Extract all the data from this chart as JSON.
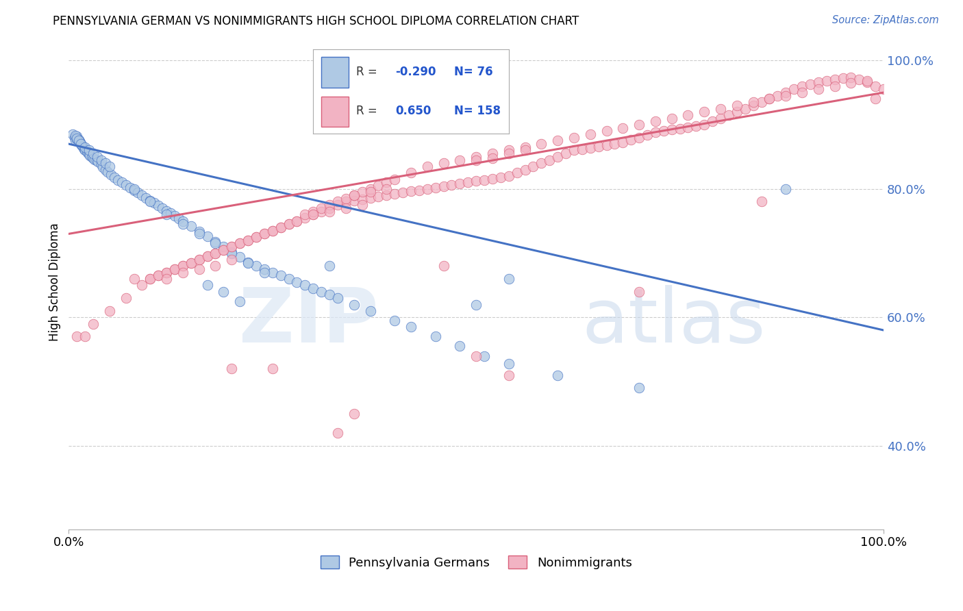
{
  "title": "PENNSYLVANIA GERMAN VS NONIMMIGRANTS HIGH SCHOOL DIPLOMA CORRELATION CHART",
  "source": "Source: ZipAtlas.com",
  "ylabel": "High School Diploma",
  "legend_label1": "Pennsylvania Germans",
  "legend_label2": "Nonimmigrants",
  "r1": "-0.290",
  "n1": "76",
  "r2": "0.650",
  "n2": "158",
  "color_blue": "#AFC9E4",
  "color_pink": "#F2B3C3",
  "line_blue": "#4472C4",
  "line_pink": "#D9607A",
  "watermark_zip": "ZIP",
  "watermark_atlas": "atlas",
  "xlim": [
    0.0,
    1.0
  ],
  "ylim": [
    0.27,
    1.04
  ],
  "blue_scatter_x": [
    0.005,
    0.007,
    0.008,
    0.01,
    0.01,
    0.012,
    0.013,
    0.014,
    0.015,
    0.016,
    0.017,
    0.018,
    0.019,
    0.02,
    0.022,
    0.023,
    0.025,
    0.026,
    0.028,
    0.03,
    0.032,
    0.034,
    0.036,
    0.04,
    0.042,
    0.045,
    0.048,
    0.052,
    0.056,
    0.06,
    0.065,
    0.07,
    0.075,
    0.08,
    0.085,
    0.09,
    0.095,
    0.1,
    0.105,
    0.11,
    0.115,
    0.12,
    0.125,
    0.13,
    0.135,
    0.14,
    0.15,
    0.16,
    0.17,
    0.18,
    0.19,
    0.2,
    0.21,
    0.22,
    0.23,
    0.24,
    0.25,
    0.26,
    0.27,
    0.28,
    0.29,
    0.3,
    0.31,
    0.32,
    0.33,
    0.35,
    0.37,
    0.4,
    0.42,
    0.45,
    0.48,
    0.51,
    0.54,
    0.6,
    0.7,
    0.88
  ],
  "blue_scatter_y": [
    0.885,
    0.88,
    0.875,
    0.882,
    0.878,
    0.876,
    0.874,
    0.872,
    0.87,
    0.868,
    0.866,
    0.864,
    0.862,
    0.86,
    0.858,
    0.856,
    0.854,
    0.852,
    0.85,
    0.848,
    0.846,
    0.844,
    0.842,
    0.838,
    0.834,
    0.83,
    0.826,
    0.822,
    0.818,
    0.814,
    0.81,
    0.806,
    0.802,
    0.798,
    0.794,
    0.79,
    0.786,
    0.782,
    0.778,
    0.774,
    0.77,
    0.766,
    0.762,
    0.758,
    0.754,
    0.75,
    0.742,
    0.734,
    0.726,
    0.718,
    0.71,
    0.702,
    0.694,
    0.686,
    0.68,
    0.675,
    0.67,
    0.665,
    0.66,
    0.655,
    0.65,
    0.645,
    0.64,
    0.635,
    0.63,
    0.62,
    0.61,
    0.595,
    0.585,
    0.57,
    0.555,
    0.54,
    0.528,
    0.51,
    0.49,
    0.8
  ],
  "blue_scatter_extra_x": [
    0.008,
    0.01,
    0.012,
    0.015,
    0.02,
    0.025,
    0.03,
    0.035,
    0.04,
    0.045,
    0.05,
    0.08,
    0.1,
    0.12,
    0.14,
    0.16,
    0.18,
    0.2,
    0.22,
    0.24,
    0.17,
    0.19,
    0.21,
    0.32,
    0.5,
    0.54
  ],
  "blue_scatter_extra_y": [
    0.883,
    0.879,
    0.875,
    0.87,
    0.865,
    0.86,
    0.855,
    0.85,
    0.845,
    0.84,
    0.835,
    0.8,
    0.78,
    0.76,
    0.745,
    0.73,
    0.715,
    0.7,
    0.685,
    0.67,
    0.65,
    0.64,
    0.625,
    0.68,
    0.62,
    0.66
  ],
  "pink_scatter_x": [
    0.01,
    0.03,
    0.05,
    0.07,
    0.09,
    0.1,
    0.11,
    0.12,
    0.13,
    0.14,
    0.15,
    0.16,
    0.17,
    0.18,
    0.19,
    0.2,
    0.21,
    0.22,
    0.23,
    0.24,
    0.25,
    0.26,
    0.27,
    0.28,
    0.29,
    0.3,
    0.31,
    0.32,
    0.33,
    0.34,
    0.35,
    0.36,
    0.37,
    0.38,
    0.39,
    0.4,
    0.41,
    0.42,
    0.43,
    0.44,
    0.45,
    0.46,
    0.47,
    0.48,
    0.49,
    0.5,
    0.51,
    0.52,
    0.53,
    0.54,
    0.55,
    0.56,
    0.57,
    0.58,
    0.59,
    0.6,
    0.61,
    0.62,
    0.63,
    0.64,
    0.65,
    0.66,
    0.67,
    0.68,
    0.69,
    0.7,
    0.71,
    0.72,
    0.73,
    0.74,
    0.75,
    0.76,
    0.77,
    0.78,
    0.79,
    0.8,
    0.81,
    0.82,
    0.83,
    0.84,
    0.85,
    0.86,
    0.87,
    0.88,
    0.89,
    0.9,
    0.91,
    0.92,
    0.93,
    0.94,
    0.95,
    0.96,
    0.97,
    0.98,
    0.99,
    1.0
  ],
  "pink_scatter_y": [
    0.57,
    0.59,
    0.61,
    0.63,
    0.65,
    0.66,
    0.665,
    0.67,
    0.675,
    0.68,
    0.685,
    0.69,
    0.695,
    0.7,
    0.705,
    0.71,
    0.715,
    0.72,
    0.725,
    0.73,
    0.735,
    0.74,
    0.745,
    0.75,
    0.755,
    0.76,
    0.765,
    0.77,
    0.775,
    0.78,
    0.782,
    0.784,
    0.786,
    0.788,
    0.79,
    0.792,
    0.794,
    0.796,
    0.798,
    0.8,
    0.802,
    0.804,
    0.806,
    0.808,
    0.81,
    0.812,
    0.814,
    0.816,
    0.818,
    0.82,
    0.825,
    0.83,
    0.835,
    0.84,
    0.845,
    0.85,
    0.855,
    0.86,
    0.862,
    0.864,
    0.866,
    0.868,
    0.87,
    0.872,
    0.876,
    0.88,
    0.884,
    0.888,
    0.89,
    0.892,
    0.894,
    0.896,
    0.898,
    0.9,
    0.905,
    0.91,
    0.915,
    0.92,
    0.925,
    0.93,
    0.935,
    0.94,
    0.945,
    0.95,
    0.955,
    0.96,
    0.963,
    0.966,
    0.968,
    0.97,
    0.972,
    0.974,
    0.97,
    0.966,
    0.96,
    0.955
  ],
  "pink_scatter_extra_x": [
    0.1,
    0.11,
    0.12,
    0.13,
    0.14,
    0.15,
    0.16,
    0.17,
    0.18,
    0.19,
    0.2,
    0.21,
    0.22,
    0.23,
    0.24,
    0.25,
    0.26,
    0.27,
    0.28,
    0.29,
    0.3,
    0.31,
    0.32,
    0.33,
    0.34,
    0.35,
    0.36,
    0.37,
    0.38,
    0.39,
    0.4,
    0.42,
    0.44,
    0.46,
    0.48,
    0.5,
    0.52,
    0.54,
    0.56,
    0.58,
    0.6,
    0.62,
    0.64,
    0.66,
    0.68,
    0.7,
    0.72,
    0.74,
    0.76,
    0.78,
    0.8,
    0.82,
    0.84,
    0.86,
    0.88,
    0.9,
    0.92,
    0.94,
    0.96,
    0.98,
    0.12,
    0.14,
    0.16,
    0.18,
    0.2,
    0.35,
    0.37,
    0.39,
    0.54,
    0.56,
    0.3,
    0.32,
    0.34,
    0.36,
    0.5,
    0.52
  ],
  "pink_scatter_extra_y": [
    0.66,
    0.665,
    0.67,
    0.675,
    0.68,
    0.685,
    0.69,
    0.695,
    0.7,
    0.705,
    0.71,
    0.715,
    0.72,
    0.725,
    0.73,
    0.735,
    0.74,
    0.745,
    0.75,
    0.76,
    0.765,
    0.77,
    0.775,
    0.78,
    0.785,
    0.79,
    0.795,
    0.8,
    0.805,
    0.81,
    0.815,
    0.825,
    0.835,
    0.84,
    0.845,
    0.85,
    0.855,
    0.86,
    0.865,
    0.87,
    0.875,
    0.88,
    0.885,
    0.89,
    0.895,
    0.9,
    0.905,
    0.91,
    0.915,
    0.92,
    0.925,
    0.93,
    0.935,
    0.94,
    0.945,
    0.95,
    0.955,
    0.96,
    0.965,
    0.968,
    0.66,
    0.67,
    0.675,
    0.68,
    0.69,
    0.79,
    0.795,
    0.8,
    0.855,
    0.86,
    0.76,
    0.765,
    0.77,
    0.775,
    0.845,
    0.848
  ],
  "pink_outliers_x": [
    0.02,
    0.08,
    0.2,
    0.25,
    0.33,
    0.35,
    0.46,
    0.5,
    0.54,
    0.7,
    0.85,
    0.99
  ],
  "pink_outliers_y": [
    0.57,
    0.66,
    0.52,
    0.52,
    0.42,
    0.45,
    0.68,
    0.54,
    0.51,
    0.64,
    0.78,
    0.94
  ],
  "blue_line_x": [
    0.0,
    1.0
  ],
  "blue_line_y": [
    0.87,
    0.58
  ],
  "pink_line_x": [
    0.0,
    1.0
  ],
  "pink_line_y": [
    0.73,
    0.95
  ],
  "yticks": [
    0.4,
    0.6,
    0.8,
    1.0
  ],
  "ytick_labels": [
    "40.0%",
    "60.0%",
    "80.0%",
    "100.0%"
  ],
  "xtick_positions": [
    0.0,
    1.0
  ],
  "xtick_labels": [
    "0.0%",
    "100.0%"
  ]
}
